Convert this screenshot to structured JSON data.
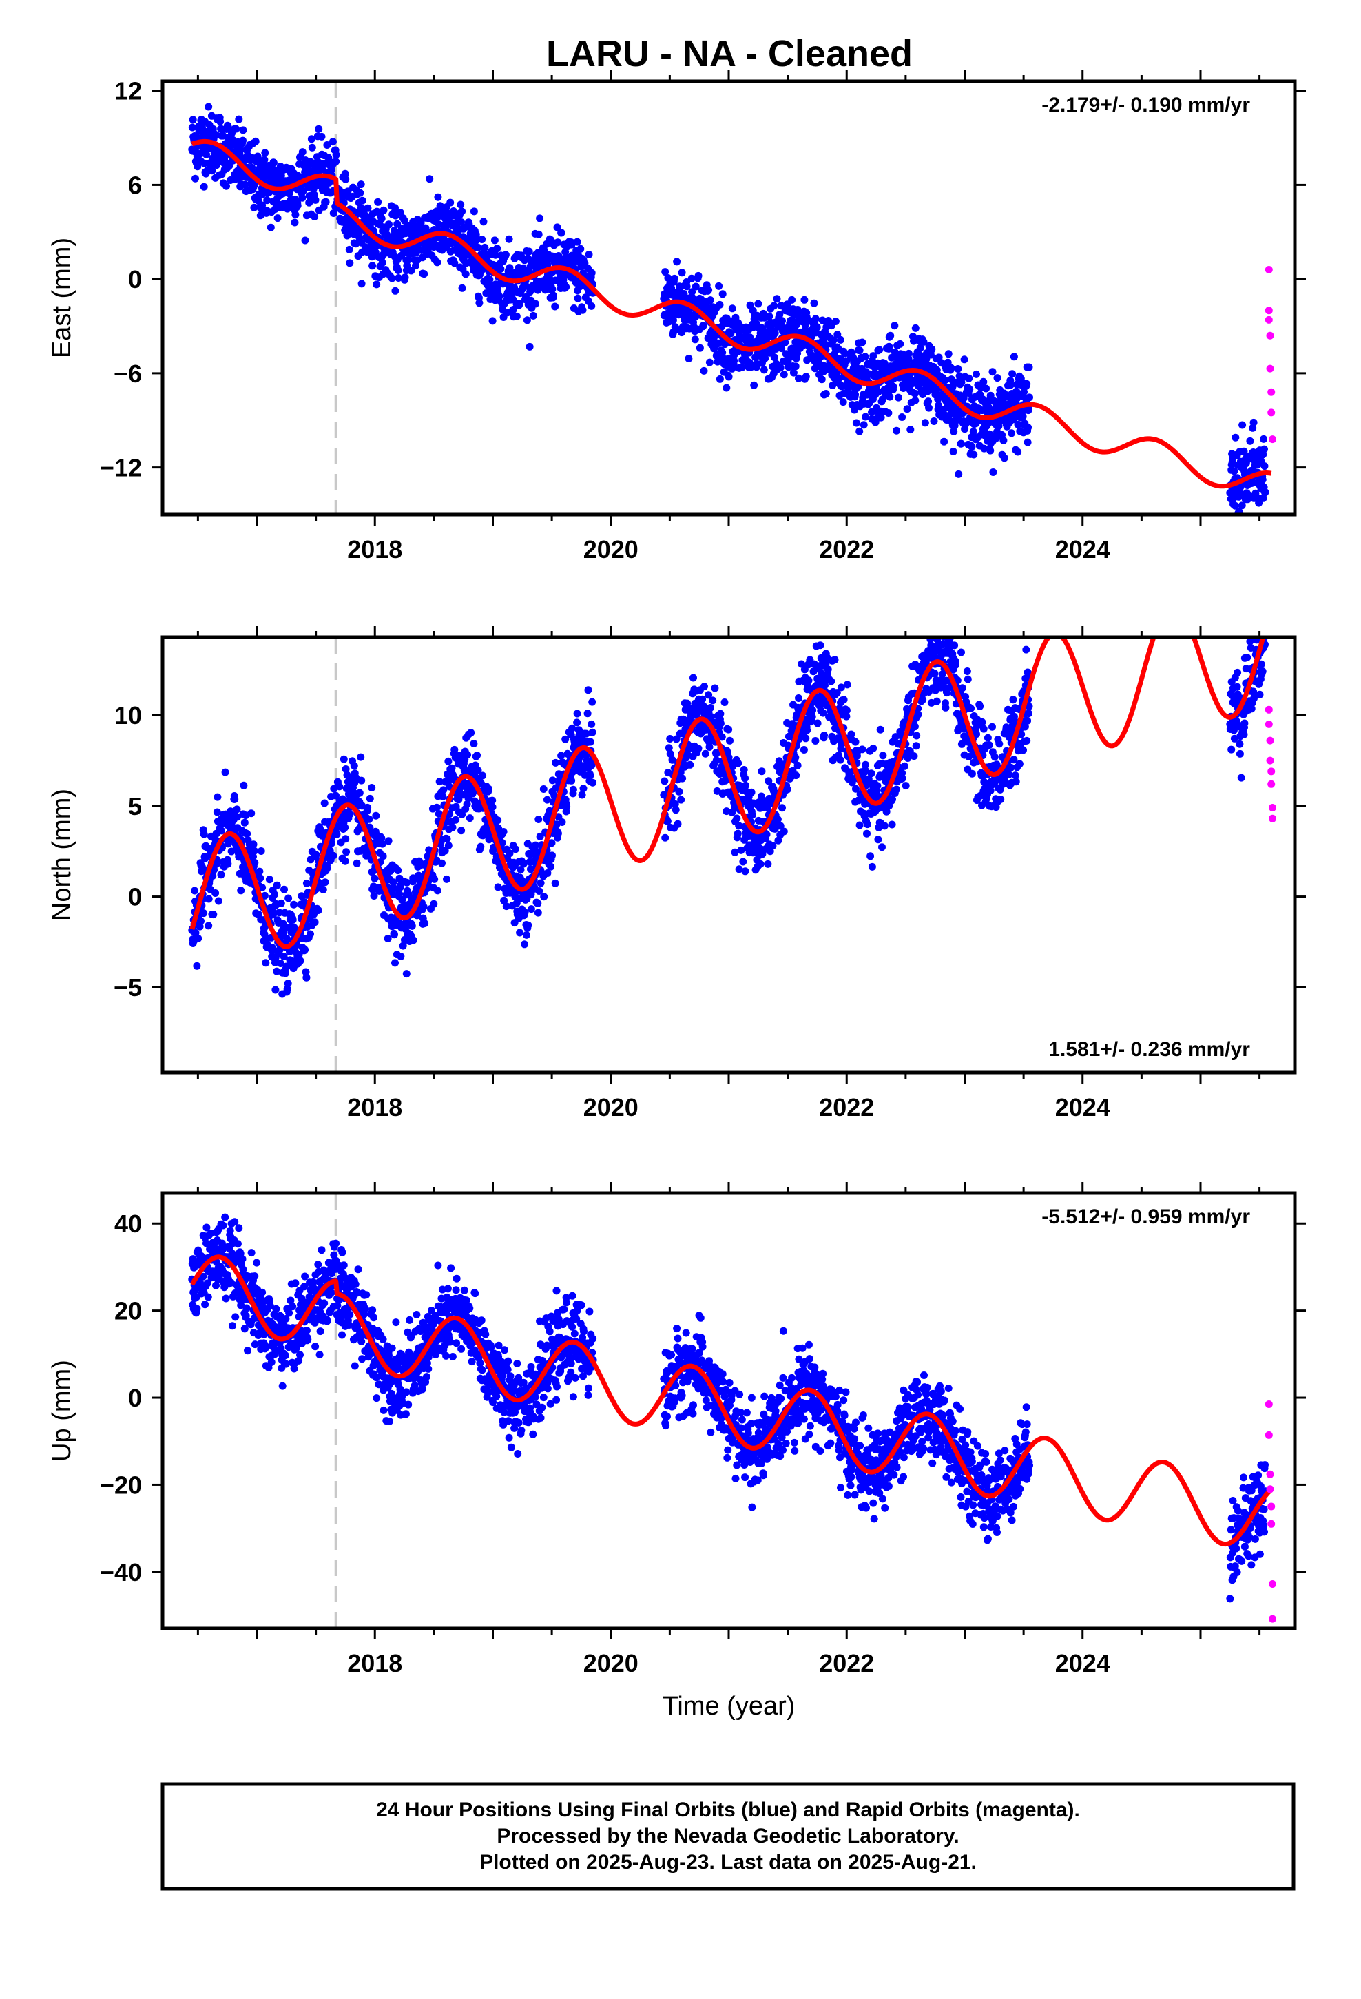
{
  "title": "LARU  - NA - Cleaned",
  "colors": {
    "final_orbits": "#0000ff",
    "rapid_orbits": "#ff00ff",
    "model_fit": "#ff0000",
    "event_line": "#c8c8c8",
    "frame": "#000000"
  },
  "footer": {
    "line1": "24 Hour Positions Using Final Orbits (blue) and Rapid Orbits (magenta).",
    "line2": "Processed by the Nevada Geodetic Laboratory.",
    "line3": "Plotted on 2025-Aug-23. Last data on 2025-Aug-21."
  },
  "chart_data": [
    {
      "type": "scatter",
      "component": "east",
      "ylabel": "East (mm)",
      "xlabel": "",
      "rate_label": "-2.179+/- 0.190 mm/yr",
      "rate_position": "top-right",
      "xlim": [
        2016.2,
        2025.8
      ],
      "ylim": [
        -15,
        12.6
      ],
      "yticks": [
        12,
        6,
        0,
        -6,
        -12
      ],
      "ytick_labels": [
        "12",
        "6",
        "0",
        "−6",
        "−12"
      ],
      "xticks": [
        2018,
        2020,
        2022,
        2024
      ],
      "xtick_labels": [
        "2018",
        "2020",
        "2022",
        "2024"
      ],
      "event_line_x": 2017.67,
      "model": {
        "start": 2016.45,
        "end": 2025.6,
        "offset": 8.6,
        "rate": -2.179,
        "reference_year": 2016.45,
        "annual_amplitude": 0.9,
        "annual_phase": 0.5,
        "steps": [
          {
            "x": 2017.67,
            "dy": -1.5
          }
        ]
      },
      "final_segments": [
        {
          "start": 2016.45,
          "end": 2019.85,
          "spread": 1.1
        },
        {
          "start": 2020.45,
          "end": 2023.55,
          "spread": 1.2
        },
        {
          "start": 2025.25,
          "end": 2025.55,
          "spread": 1.3
        }
      ],
      "rapid": {
        "x": [
          2025.58,
          2025.58,
          2025.58,
          2025.59,
          2025.59,
          2025.6,
          2025.6,
          2025.61
        ],
        "y": [
          0.6,
          -2.0,
          -2.6,
          -3.6,
          -5.7,
          -7.2,
          -8.5,
          -10.2
        ]
      }
    },
    {
      "type": "scatter",
      "component": "north",
      "ylabel": "North (mm)",
      "xlabel": "",
      "rate_label": "1.581+/- 0.236 mm/yr",
      "rate_position": "bottom-right",
      "xlim": [
        2016.2,
        2025.8
      ],
      "ylim": [
        -9.7,
        14.3
      ],
      "yticks": [
        10,
        5,
        0,
        -5
      ],
      "ytick_labels": [
        "10",
        "5",
        "0",
        "−5"
      ],
      "xticks": [
        2018,
        2020,
        2022,
        2024
      ],
      "xtick_labels": [
        "2018",
        "2020",
        "2022",
        "2024"
      ],
      "event_line_x": 2017.67,
      "model": {
        "start": 2016.45,
        "end": 2025.6,
        "offset": -1.8,
        "rate": 1.581,
        "reference_year": 2016.45,
        "annual_amplitude": 3.5,
        "annual_phase": -0.37,
        "steps": []
      },
      "final_segments": [
        {
          "start": 2016.45,
          "end": 2019.85,
          "spread": 1.2
        },
        {
          "start": 2020.45,
          "end": 2023.55,
          "spread": 1.2
        },
        {
          "start": 2025.25,
          "end": 2025.55,
          "spread": 1.3
        }
      ],
      "rapid": {
        "x": [
          2025.58,
          2025.58,
          2025.59,
          2025.59,
          2025.6,
          2025.6,
          2025.61,
          2025.61
        ],
        "y": [
          10.3,
          9.5,
          8.6,
          7.5,
          6.9,
          6.2,
          4.9,
          4.3
        ]
      }
    },
    {
      "type": "scatter",
      "component": "up",
      "ylabel": "Up (mm)",
      "xlabel": "Time (year)",
      "rate_label": "-5.512+/- 0.959 mm/yr",
      "rate_position": "top-right",
      "xlim": [
        2016.2,
        2025.8
      ],
      "ylim": [
        -53,
        47
      ],
      "yticks": [
        40,
        20,
        0,
        -20,
        -40
      ],
      "ytick_labels": [
        "40",
        "20",
        "0",
        "−20",
        "−40"
      ],
      "xticks": [
        2018,
        2020,
        2022,
        2024
      ],
      "xtick_labels": [
        "2018",
        "2020",
        "2022",
        "2024"
      ],
      "event_line_x": 2017.67,
      "model": {
        "start": 2016.45,
        "end": 2025.6,
        "offset": 26,
        "rate": -5.512,
        "reference_year": 2016.45,
        "annual_amplitude": 8.0,
        "annual_phase": 0.05,
        "steps": [
          {
            "x": 2017.67,
            "dy": -3
          }
        ]
      },
      "final_segments": [
        {
          "start": 2016.45,
          "end": 2019.85,
          "spread": 4.5
        },
        {
          "start": 2020.45,
          "end": 2023.55,
          "spread": 4.5
        },
        {
          "start": 2025.25,
          "end": 2025.55,
          "spread": 5.0
        }
      ],
      "rapid": {
        "x": [
          2025.58,
          2025.58,
          2025.59,
          2025.59,
          2025.6,
          2025.6,
          2025.61,
          2025.61
        ],
        "y": [
          -1.5,
          -8.6,
          -17.6,
          -21.0,
          -25.0,
          -29.0,
          -42.8,
          -50.8
        ]
      }
    }
  ]
}
